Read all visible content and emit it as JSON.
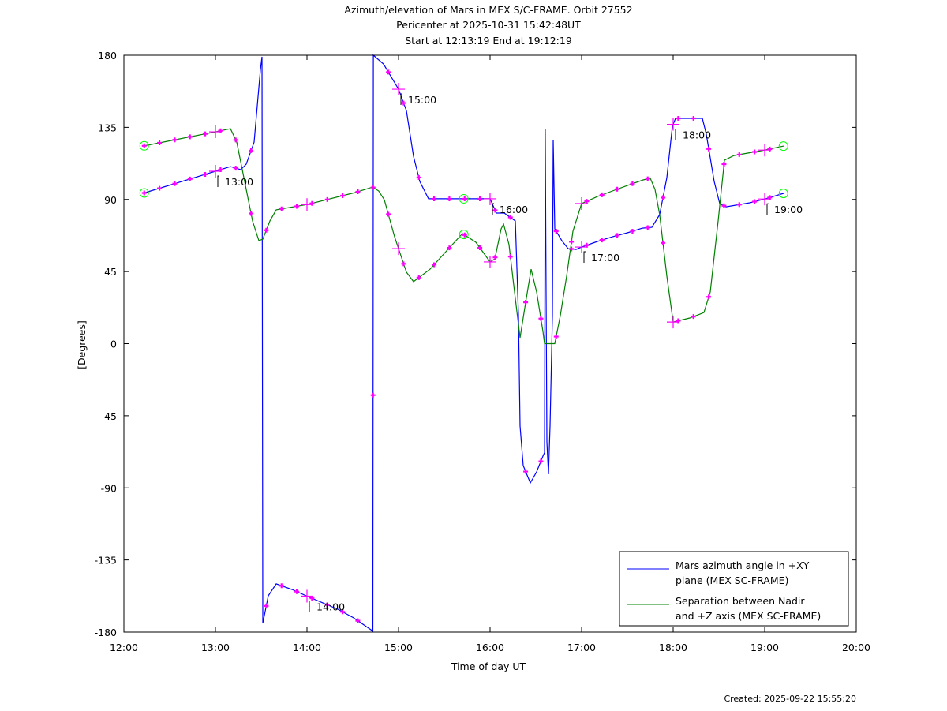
{
  "chart_data": {
    "type": "line",
    "title_lines": [
      "Azimuth/elevation of Mars in MEX S/C-FRAME.  Orbit 27552",
      "Pericenter at 2025-10-31 15:42:48UT",
      "Start at 12:13:19 End at 19:12:19"
    ],
    "xlabel": "Time of day UT",
    "ylabel": "[Degrees]",
    "xlim": [
      12,
      20
    ],
    "ylim": [
      -180,
      180
    ],
    "x_ticks": [
      12,
      13,
      14,
      15,
      16,
      17,
      18,
      19,
      20
    ],
    "x_tick_labels": [
      "12:00",
      "13:00",
      "14:00",
      "15:00",
      "16:00",
      "17:00",
      "18:00",
      "19:00",
      "20:00"
    ],
    "y_ticks": [
      180,
      135,
      90,
      45,
      0,
      -45,
      -90,
      -135,
      -180
    ],
    "y_tick_labels": [
      "180",
      "135",
      "90",
      "45",
      "0",
      "-45",
      "-90",
      "-135",
      "-180"
    ],
    "legend_position": "bottom-right",
    "start_time": 12.222,
    "end_time": 19.205,
    "pericenter_time": 15.713,
    "marker_interval_hours": 0.16667,
    "hour_annotations": [
      {
        "t": 13,
        "label": "13:00"
      },
      {
        "t": 14,
        "label": "14:00"
      },
      {
        "t": 15,
        "label": "15:00"
      },
      {
        "t": 16,
        "label": "16:00"
      },
      {
        "t": 17,
        "label": "17:00"
      },
      {
        "t": 18,
        "label": "18:00"
      },
      {
        "t": 19,
        "label": "19:00"
      }
    ],
    "series": [
      {
        "name": "Mars azimuth angle in +XY plane (MEX SC-FRAME)",
        "legend_lines": [
          "Mars azimuth angle in +XY",
          "plane (MEX SC-FRAME)"
        ],
        "color": "#0000ff",
        "points": [
          [
            12.207,
            93.8
          ],
          [
            13.0,
            107.6
          ],
          [
            13.164,
            110.5
          ],
          [
            13.276,
            108.6
          ],
          [
            13.336,
            112.0
          ],
          [
            13.422,
            125.8
          ],
          [
            13.491,
            171.1
          ],
          [
            13.509,
            179
          ],
          [
            13.517,
            -174.5
          ],
          [
            13.578,
            -157.3
          ],
          [
            13.664,
            -149.9
          ],
          [
            13.836,
            -153.4
          ],
          [
            14.009,
            -157.8
          ],
          [
            14.336,
            -165.7
          ],
          [
            14.509,
            -171.1
          ],
          [
            14.698,
            -178.5
          ],
          [
            14.72,
            -179.5
          ],
          [
            14.725,
            180
          ],
          [
            14.836,
            174.5
          ],
          [
            15.0,
            158.8
          ],
          [
            15.086,
            145.4
          ],
          [
            15.164,
            116.9
          ],
          [
            15.233,
            101.2
          ],
          [
            15.328,
            90.4
          ],
          [
            16.0,
            90.4
          ],
          [
            16.069,
            81.5
          ],
          [
            16.155,
            81.5
          ],
          [
            16.276,
            76.6
          ],
          [
            16.31,
            17.5
          ],
          [
            16.328,
            -51.4
          ],
          [
            16.362,
            -76.1
          ],
          [
            16.44,
            -86.9
          ],
          [
            16.509,
            -80
          ],
          [
            16.578,
            -70.2
          ],
          [
            16.595,
            -68
          ],
          [
            16.603,
            134.2
          ],
          [
            16.621,
            -61.3
          ],
          [
            16.638,
            -81.5
          ],
          [
            16.655,
            -51.4
          ],
          [
            16.681,
            17.5
          ],
          [
            16.69,
            127.3
          ],
          [
            16.707,
            71.6
          ],
          [
            16.784,
            64.3
          ],
          [
            16.853,
            59.3
          ],
          [
            16.94,
            58.8
          ],
          [
            17.0,
            60.3
          ],
          [
            17.172,
            63.8
          ],
          [
            17.336,
            66.7
          ],
          [
            17.5,
            69.2
          ],
          [
            17.664,
            72.1
          ],
          [
            17.767,
            72.6
          ],
          [
            17.853,
            80.5
          ],
          [
            17.931,
            103.6
          ],
          [
            17.991,
            135.6
          ],
          [
            18.026,
            140.6
          ],
          [
            18.319,
            140.6
          ],
          [
            18.362,
            130.7
          ],
          [
            18.448,
            101.2
          ],
          [
            18.509,
            87.4
          ],
          [
            18.578,
            85.4
          ],
          [
            18.836,
            87.9
          ],
          [
            19.009,
            90.4
          ],
          [
            19.207,
            93.8
          ]
        ]
      },
      {
        "name": "Separation between Nadir and +Z axis (MEX SC-FRAME)",
        "legend_lines": [
          "Separation between Nadir",
          "and +Z axis (MEX SC-FRAME)"
        ],
        "color": "#008000",
        "points": [
          [
            12.207,
            123.3
          ],
          [
            13.0,
            132.2
          ],
          [
            13.164,
            134.2
          ],
          [
            13.233,
            125.8
          ],
          [
            13.336,
            96.3
          ],
          [
            13.405,
            76.6
          ],
          [
            13.474,
            64.3
          ],
          [
            13.517,
            65.2
          ],
          [
            13.595,
            76.6
          ],
          [
            13.664,
            83.5
          ],
          [
            14.009,
            86.9
          ],
          [
            14.526,
            94.3
          ],
          [
            14.716,
            97.7
          ],
          [
            14.784,
            95.3
          ],
          [
            14.845,
            89.8
          ],
          [
            14.957,
            66.7
          ],
          [
            15.0,
            59.3
          ],
          [
            15.086,
            44.6
          ],
          [
            15.164,
            38.7
          ],
          [
            15.345,
            46.5
          ],
          [
            15.509,
            56.9
          ],
          [
            15.698,
            68.7
          ],
          [
            15.845,
            63.3
          ],
          [
            16.0,
            51
          ],
          [
            16.052,
            52.9
          ],
          [
            16.121,
            71.6
          ],
          [
            16.147,
            74.6
          ],
          [
            16.207,
            61.8
          ],
          [
            16.267,
            32.2
          ],
          [
            16.328,
            3.7
          ],
          [
            16.379,
            22.4
          ],
          [
            16.448,
            46.5
          ],
          [
            16.509,
            32.2
          ],
          [
            16.578,
            7.6
          ],
          [
            16.595,
            0
          ],
          [
            16.707,
            0
          ],
          [
            16.767,
            17.5
          ],
          [
            16.836,
            42.1
          ],
          [
            16.905,
            70.2
          ],
          [
            17.0,
            87.4
          ],
          [
            17.172,
            91.8
          ],
          [
            17.336,
            95.3
          ],
          [
            17.5,
            98.7
          ],
          [
            17.672,
            102.2
          ],
          [
            17.75,
            103.2
          ],
          [
            17.802,
            96.3
          ],
          [
            17.853,
            80.5
          ],
          [
            17.931,
            42.1
          ],
          [
            18.0,
            13.5
          ],
          [
            18.181,
            16
          ],
          [
            18.336,
            19.4
          ],
          [
            18.405,
            32.2
          ],
          [
            18.491,
            76.6
          ],
          [
            18.56,
            114.5
          ],
          [
            18.664,
            117.4
          ],
          [
            19.009,
            120.9
          ],
          [
            19.207,
            123.3
          ]
        ]
      }
    ],
    "marker_color": "#ff00ff",
    "event_marker_color": "#00ff00"
  },
  "footer": {
    "created": "Created: 2025-09-22 15:55:20"
  }
}
